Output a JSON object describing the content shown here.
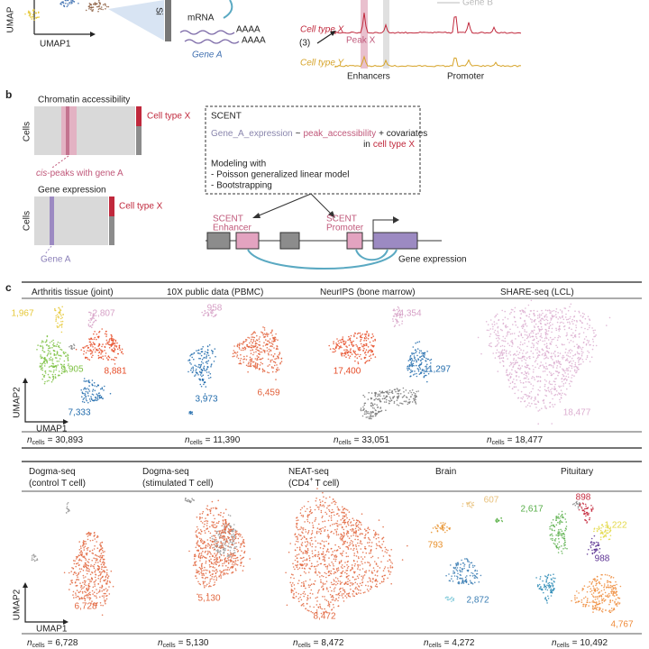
{
  "panel_a": {
    "umap_x": "UMAP1",
    "umap_y": "UMAP",
    "side_label": "Si",
    "mrna": "mRNA",
    "polya": [
      "AAAA",
      "AAAA"
    ],
    "gene": "Gene A",
    "step": "(3)",
    "tracks": [
      "Cell type X",
      "Cell type Y"
    ],
    "peak": "Peak X",
    "regions": [
      "Enhancers",
      "Promoter"
    ],
    "gene_b": "Gene B"
  },
  "panel_b": {
    "letter": "b",
    "chrom_title": "Chromatin accessibility",
    "cells": "Cells",
    "cell_type": "Cell type X",
    "cis_italic": "cis",
    "cis_rest": "-peaks with gene A",
    "expr_title": "Gene expression",
    "cells2": "Cells",
    "cell_type2": "Cell type X",
    "gene": "Gene A",
    "box": {
      "title": "SCENT",
      "formula_expr": "Gene_A_expression",
      "tilde": "~",
      "formula_peak": "peak_accessibility",
      "formula_rest": "+ covariates",
      "in": "in",
      "cell_type": "cell type X",
      "modeling": "Modeling with",
      "methods": [
        "- Poisson generalized linear model",
        "- Bootstrapping"
      ]
    },
    "enhancer": [
      "SCENT",
      "Enhancer"
    ],
    "promoter": [
      "SCENT",
      "Promoter"
    ],
    "gene_expression": "Gene expression"
  },
  "panel_c": {
    "letter": "c",
    "n": "n",
    "n_sub": "cells",
    "eq": "=",
    "umap_x": "UMAP1",
    "umap_y": "UMAP2",
    "rows": [
      [
        {
          "title": [
            [
              "Arthritis tissue (joint)"
            ]
          ],
          "ncells": "30,893",
          "clusters": [
            {
              "label": "1,967",
              "color": "#e6c93a"
            },
            {
              "label": "2,807",
              "color": "#d6a0c6"
            },
            {
              "label": "8,881",
              "color": "#e64b26"
            },
            {
              "label": "9,905",
              "color": "#7dc142"
            },
            {
              "label": "7,333",
              "color": "#1f6aab"
            }
          ]
        },
        {
          "title": [
            [
              "10X public data (PBMC)"
            ]
          ],
          "ncells": "11,390",
          "clusters": [
            {
              "label": "958",
              "color": "#d6a0c6"
            },
            {
              "label": "6,459",
              "color": "#e2603a"
            },
            {
              "label": "3,973",
              "color": "#1f6aab"
            }
          ]
        },
        {
          "title": [
            [
              "NeurIPS (bone marrow)"
            ]
          ],
          "ncells": "33,051",
          "clusters": [
            {
              "label": "4,354",
              "color": "#d6a0c6"
            },
            {
              "label": "17,400",
              "color": "#e64b26"
            },
            {
              "label": "11,297",
              "color": "#1f6aab"
            }
          ]
        },
        {
          "title": [
            [
              "SHARE-seq (LCL)"
            ]
          ],
          "ncells": "18,477",
          "clusters": [
            {
              "label": "18,477",
              "color": "#dcaed0"
            }
          ]
        }
      ],
      [
        {
          "title": [
            [
              "Dogma-seq"
            ],
            [
              "(control T cell)"
            ]
          ],
          "ncells": "6,728",
          "clusters": [
            {
              "label": "6,728",
              "color": "#e2673f"
            }
          ]
        },
        {
          "title": [
            [
              "Dogma-seq"
            ],
            [
              "(stimulated T cell)"
            ]
          ],
          "ncells": "5,130",
          "clusters": [
            {
              "label": "5,130",
              "color": "#e2673f"
            }
          ]
        },
        {
          "title": [
            [
              "NEAT-seq"
            ],
            [
              "(CD4",
              {
                "sup": "+"
              },
              "T cell)"
            ]
          ],
          "ncells": "8,472",
          "clusters": [
            {
              "label": "8,472",
              "color": "#e2673f"
            }
          ]
        },
        {
          "title": [
            [
              "Brain"
            ]
          ],
          "ncells": "4,272",
          "clusters": [
            {
              "label": "607",
              "color": "#e8c07a"
            },
            {
              "label": "793",
              "color": "#e8902a"
            },
            {
              "label": "2,872",
              "color": "#3a7db3"
            }
          ]
        },
        {
          "title": [
            [
              "Pituitary"
            ]
          ],
          "ncells": "10,492",
          "clusters": [
            {
              "label": "2,617",
              "color": "#57ae48"
            },
            {
              "label": "898",
              "color": "#c4283c"
            },
            {
              "label": "1,222",
              "color": "#e3d947"
            },
            {
              "label": "988",
              "color": "#5b3192"
            },
            {
              "label": "4,767",
              "color": "#ef8b3a"
            }
          ]
        }
      ]
    ]
  }
}
